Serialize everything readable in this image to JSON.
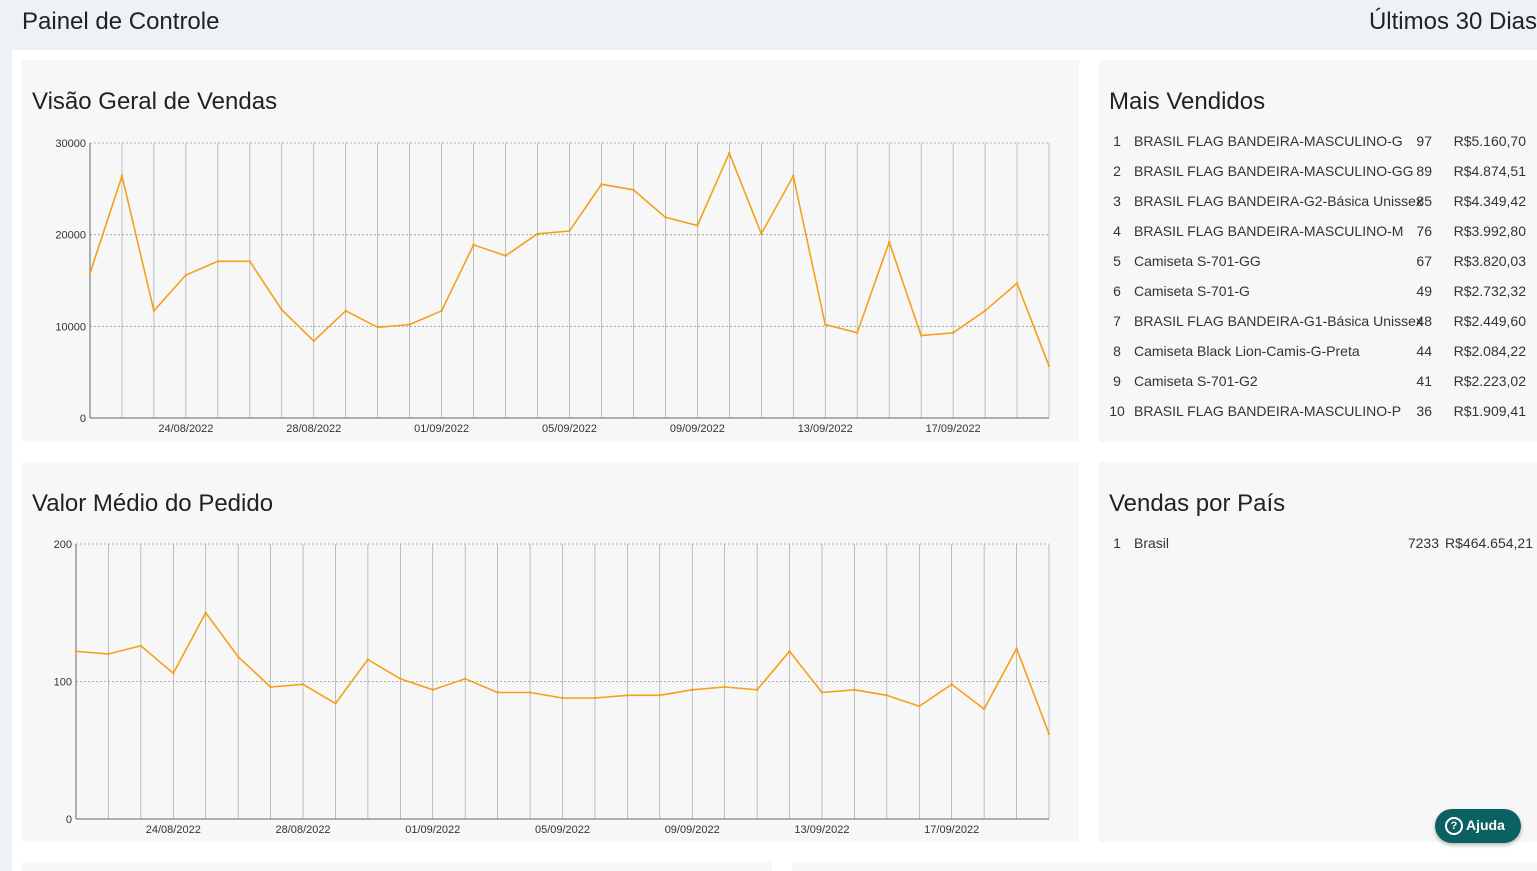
{
  "header": {
    "title": "Painel de Controle",
    "period": "Últimos 30 Dias"
  },
  "sales_overview": {
    "title": "Visão Geral de Vendas",
    "chart_data": {
      "type": "line",
      "x": [
        "21/08/2022",
        "22/08/2022",
        "23/08/2022",
        "24/08/2022",
        "25/08/2022",
        "26/08/2022",
        "27/08/2022",
        "28/08/2022",
        "29/08/2022",
        "30/08/2022",
        "31/08/2022",
        "01/09/2022",
        "02/09/2022",
        "03/09/2022",
        "04/09/2022",
        "05/09/2022",
        "06/09/2022",
        "07/09/2022",
        "08/09/2022",
        "09/09/2022",
        "10/09/2022",
        "11/09/2022",
        "12/09/2022",
        "13/09/2022",
        "14/09/2022",
        "15/09/2022",
        "16/09/2022",
        "17/09/2022",
        "18/09/2022",
        "19/09/2022",
        "20/09/2022"
      ],
      "tick_labels": [
        "24/08/2022",
        "28/08/2022",
        "01/09/2022",
        "05/09/2022",
        "09/09/2022",
        "13/09/2022",
        "17/09/2022"
      ],
      "values": [
        15800,
        26400,
        11700,
        15600,
        17100,
        17100,
        11800,
        8400,
        11700,
        9900,
        10200,
        11700,
        18900,
        17700,
        20100,
        20400,
        25500,
        24900,
        21900,
        21000,
        28900,
        20100,
        26400,
        10200,
        9300,
        19200,
        9000,
        9300,
        11700,
        14700,
        5700
      ],
      "ylim": [
        0,
        30000
      ],
      "yticks": [
        0,
        10000,
        20000,
        30000
      ],
      "grid": true,
      "color": "#f5a01a"
    }
  },
  "avg_order": {
    "title": "Valor Médio do Pedido",
    "chart_data": {
      "type": "line",
      "x": [
        "21/08/2022",
        "22/08/2022",
        "23/08/2022",
        "24/08/2022",
        "25/08/2022",
        "26/08/2022",
        "27/08/2022",
        "28/08/2022",
        "29/08/2022",
        "30/08/2022",
        "31/08/2022",
        "01/09/2022",
        "02/09/2022",
        "03/09/2022",
        "04/09/2022",
        "05/09/2022",
        "06/09/2022",
        "07/09/2022",
        "08/09/2022",
        "09/09/2022",
        "10/09/2022",
        "11/09/2022",
        "12/09/2022",
        "13/09/2022",
        "14/09/2022",
        "15/09/2022",
        "16/09/2022",
        "17/09/2022",
        "18/09/2022",
        "19/09/2022",
        "20/09/2022"
      ],
      "tick_labels": [
        "24/08/2022",
        "28/08/2022",
        "01/09/2022",
        "05/09/2022",
        "09/09/2022",
        "13/09/2022",
        "17/09/2022"
      ],
      "values": [
        122,
        120,
        126,
        106,
        150,
        118,
        96,
        98,
        84,
        116,
        102,
        94,
        102,
        92,
        92,
        88,
        88,
        90,
        90,
        94,
        96,
        94,
        122,
        92,
        94,
        90,
        82,
        98,
        80,
        124,
        62
      ],
      "ylim": [
        0,
        200
      ],
      "yticks": [
        0,
        100,
        200
      ],
      "grid": true,
      "color": "#f5a01a"
    }
  },
  "top_sellers": {
    "title": "Mais Vendidos",
    "items": [
      {
        "rank": "1",
        "name": "BRASIL FLAG BANDEIRA-MASCULINO-G",
        "qty": "97",
        "total": "R$5.160,70"
      },
      {
        "rank": "2",
        "name": "BRASIL FLAG BANDEIRA-MASCULINO-GG",
        "qty": "89",
        "total": "R$4.874,51"
      },
      {
        "rank": "3",
        "name": "BRASIL FLAG BANDEIRA-G2-Básica Unissex",
        "qty": "85",
        "total": "R$4.349,42"
      },
      {
        "rank": "4",
        "name": "BRASIL FLAG BANDEIRA-MASCULINO-M",
        "qty": "76",
        "total": "R$3.992,80"
      },
      {
        "rank": "5",
        "name": "Camiseta S-701-GG",
        "qty": "67",
        "total": "R$3.820,03"
      },
      {
        "rank": "6",
        "name": "Camiseta S-701-G",
        "qty": "49",
        "total": "R$2.732,32"
      },
      {
        "rank": "7",
        "name": "BRASIL FLAG BANDEIRA-G1-Básica Unissex",
        "qty": "48",
        "total": "R$2.449,60"
      },
      {
        "rank": "8",
        "name": "Camiseta Black Lion-Camis-G-Preta",
        "qty": "44",
        "total": "R$2.084,22"
      },
      {
        "rank": "9",
        "name": "Camiseta S-701-G2",
        "qty": "41",
        "total": "R$2.223,02"
      },
      {
        "rank": "10",
        "name": "BRASIL FLAG BANDEIRA-MASCULINO-P",
        "qty": "36",
        "total": "R$1.909,41"
      }
    ]
  },
  "sales_by_country": {
    "title": "Vendas por País",
    "items": [
      {
        "rank": "1",
        "name": "Brasil",
        "qty": "7233",
        "total": "R$464.654,21"
      }
    ]
  },
  "help": {
    "label": "Ajuda",
    "icon": "question-circle-icon",
    "color": "#0b6161"
  }
}
